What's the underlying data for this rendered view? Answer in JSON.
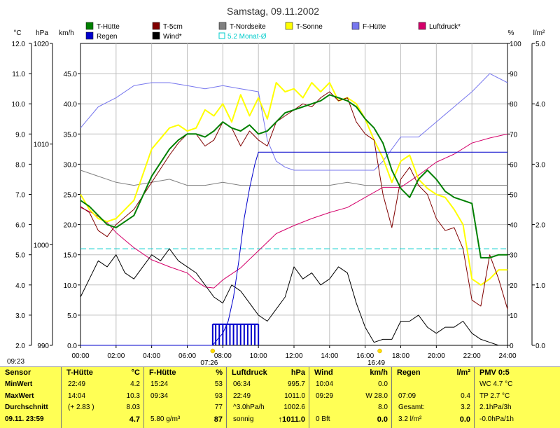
{
  "chart_data": {
    "type": "line",
    "title": "Samstag, 09.11.2002",
    "x_ticks": [
      "00:00",
      "02:00",
      "04:00",
      "06:00",
      "08:00",
      "10:00",
      "12:00",
      "14:00",
      "16:00",
      "18:00",
      "20:00",
      "22:00",
      "24:00"
    ],
    "xlim": [
      0,
      24
    ],
    "axis_units": {
      "temp": "°C",
      "pressure": "hPa",
      "wind": "km/h",
      "humidity": "%",
      "rain": "l/m²"
    },
    "axes": {
      "temp": {
        "lim": [
          2,
          12
        ],
        "ticks": [
          "2.0",
          "3.0",
          "4.0",
          "5.0",
          "6.0",
          "7.0",
          "8.0",
          "9.0",
          "10.0",
          "11.0",
          "12.0"
        ]
      },
      "pressure": {
        "lim": [
          990,
          1020
        ],
        "ticks": [
          "990",
          "1000",
          "1010",
          "1020"
        ]
      },
      "wind": {
        "lim": [
          0,
          50
        ],
        "ticks": [
          "0.0",
          "5.0",
          "10.0",
          "15.0",
          "20.0",
          "25.0",
          "30.0",
          "35.0",
          "40.0",
          "45.0"
        ]
      },
      "humidity": {
        "lim": [
          0,
          100
        ],
        "ticks": [
          "0",
          "10",
          "20",
          "30",
          "40",
          "50",
          "60",
          "70",
          "80",
          "90",
          "100"
        ]
      },
      "rain": {
        "lim": [
          0,
          5
        ],
        "ticks": [
          "0.0",
          "1.0",
          "2.0",
          "3.0",
          "4.0",
          "5.0"
        ]
      }
    },
    "legend": [
      {
        "name": "T-Hütte",
        "color": "#008000",
        "marker": "box"
      },
      {
        "name": "T-5cm",
        "color": "#800000",
        "marker": "box"
      },
      {
        "name": "T-Nordseite",
        "color": "#808080",
        "marker": "box"
      },
      {
        "name": "T-Sonne",
        "color": "#ffff00",
        "marker": "box"
      },
      {
        "name": "F-Hütte",
        "color": "#7777ee",
        "marker": "box"
      },
      {
        "name": "Luftdruck*",
        "color": "#d4006a",
        "marker": "box"
      },
      {
        "name": "Regen",
        "color": "#0000cc",
        "marker": "box"
      },
      {
        "name": "Wind*",
        "color": "#000000",
        "marker": "box"
      },
      {
        "name": "5.2 Monat-Ø",
        "color": "#00cccc",
        "marker": "outline"
      }
    ],
    "monthly_avg_temp": 5.2,
    "markers": [
      {
        "label": "07:26",
        "x": 7.43
      },
      {
        "label": "16:49",
        "x": 16.82
      }
    ],
    "series": [
      {
        "name": "T-Hütte",
        "axis": "temp",
        "color": "#008000",
        "width": 2,
        "x": [
          0,
          0.5,
          1,
          1.5,
          2,
          3,
          4,
          5,
          5.5,
          6,
          6.5,
          7,
          7.5,
          8,
          8.5,
          9,
          9.5,
          10,
          10.5,
          11,
          11.5,
          12,
          12.5,
          13,
          13.5,
          14,
          14.5,
          15,
          15.5,
          16,
          16.5,
          17,
          17.5,
          18,
          18.5,
          19,
          19.5,
          20,
          20.5,
          21,
          21.5,
          22,
          22.5,
          23,
          23.5,
          24
        ],
        "y": [
          6.8,
          6.6,
          6.3,
          6.0,
          5.9,
          6.3,
          7.6,
          8.5,
          8.8,
          9.0,
          9.0,
          8.9,
          9.1,
          9.4,
          9.2,
          9.1,
          9.3,
          9.0,
          9.1,
          9.4,
          9.7,
          9.8,
          9.9,
          10.0,
          10.1,
          10.3,
          10.2,
          10.1,
          9.9,
          9.5,
          9.2,
          8.7,
          7.8,
          7.2,
          6.9,
          7.5,
          7.8,
          7.5,
          7.1,
          6.9,
          6.8,
          6.7,
          4.9,
          4.9,
          5.0,
          5.0
        ]
      },
      {
        "name": "T-5cm",
        "axis": "temp",
        "color": "#800000",
        "width": 1,
        "x": [
          0,
          0.5,
          1,
          1.5,
          2,
          3,
          4,
          5,
          5.5,
          6,
          6.5,
          7,
          7.5,
          8,
          8.5,
          9,
          9.5,
          10,
          10.5,
          11,
          11.5,
          12,
          12.5,
          13,
          13.5,
          14,
          14.5,
          15,
          15.5,
          16,
          16.5,
          17,
          17.5,
          18,
          18.5,
          19,
          19.5,
          20,
          20.5,
          21,
          21.5,
          22,
          22.5,
          23,
          23.5,
          24
        ],
        "y": [
          6.6,
          6.4,
          5.8,
          5.6,
          6.0,
          6.5,
          7.4,
          8.3,
          8.7,
          9.0,
          9.0,
          8.6,
          8.8,
          9.4,
          9.2,
          8.6,
          9.1,
          8.8,
          8.6,
          9.4,
          9.6,
          9.8,
          10.0,
          9.9,
          10.2,
          10.4,
          10.1,
          10.2,
          9.4,
          9.0,
          8.8,
          7.0,
          5.9,
          7.5,
          7.9,
          7.3,
          7.0,
          6.2,
          5.8,
          5.9,
          5.2,
          3.5,
          3.3,
          5.0,
          4.2,
          3.2
        ]
      },
      {
        "name": "T-Nordseite",
        "axis": "temp",
        "color": "#808080",
        "width": 1,
        "x": [
          0,
          1,
          2,
          3,
          4,
          5,
          6,
          7,
          8,
          9,
          10,
          11,
          12,
          13,
          14,
          15,
          16,
          16.5,
          17,
          17.5,
          18,
          19,
          20,
          21,
          22,
          23,
          24
        ],
        "y": [
          7.8,
          7.6,
          7.4,
          7.3,
          7.4,
          7.5,
          7.3,
          7.3,
          7.4,
          7.3,
          7.3,
          7.3,
          7.3,
          7.3,
          7.3,
          7.4,
          7.3,
          7.3,
          7.3,
          7.3,
          7.3,
          7.3,
          7.3,
          7.3,
          7.3,
          7.3,
          7.3
        ]
      },
      {
        "name": "T-Sonne",
        "axis": "temp",
        "color": "#ffff00",
        "width": 2,
        "x": [
          0,
          0.5,
          1,
          1.5,
          2,
          3,
          4,
          5,
          5.5,
          6,
          6.5,
          7,
          7.5,
          8,
          8.5,
          9,
          9.5,
          10,
          10.5,
          11,
          11.5,
          12,
          12.5,
          13,
          13.5,
          14,
          14.5,
          15,
          15.5,
          16,
          16.5,
          17,
          17.5,
          18,
          18.5,
          19,
          19.5,
          20,
          20.5,
          21,
          21.5,
          22,
          22.5,
          23,
          23.5,
          24
        ],
        "y": [
          7.0,
          6.5,
          6.2,
          6.1,
          6.2,
          6.8,
          8.5,
          9.2,
          9.3,
          9.1,
          9.2,
          9.8,
          9.6,
          10.0,
          9.4,
          10.3,
          9.6,
          10.2,
          9.5,
          10.7,
          10.4,
          10.5,
          10.2,
          10.7,
          10.4,
          10.7,
          10.1,
          10.2,
          10.0,
          9.5,
          8.8,
          8.2,
          7.4,
          8.1,
          8.3,
          7.5,
          7.2,
          7.0,
          6.9,
          6.5,
          6.0,
          4.2,
          4.0,
          4.2,
          4.5,
          4.5
        ]
      },
      {
        "name": "F-Hütte",
        "axis": "humidity",
        "color": "#7777ee",
        "width": 1,
        "x": [
          0,
          1,
          2,
          3,
          4,
          5,
          6,
          7,
          8,
          9,
          10,
          10.5,
          11,
          11.5,
          12,
          13,
          14,
          15,
          16,
          16.5,
          17,
          17.5,
          18,
          19,
          20,
          21,
          22,
          23,
          24
        ],
        "y": [
          72,
          79,
          82,
          86,
          87,
          87,
          86,
          85,
          86,
          85,
          84,
          68,
          61,
          59,
          58,
          58,
          58,
          58,
          58,
          58,
          61,
          65,
          69,
          69,
          74,
          79,
          84,
          90,
          87
        ]
      },
      {
        "name": "Luftdruck*",
        "axis": "pressure",
        "color": "#d4006a",
        "width": 1,
        "x": [
          0,
          0.5,
          1,
          1.5,
          2,
          3,
          4,
          5,
          6,
          6.5,
          7,
          7.5,
          8,
          9,
          10,
          11,
          12,
          13,
          14,
          15,
          16,
          17,
          18,
          19,
          20,
          21,
          22,
          23,
          24
        ],
        "y": [
          1003.7,
          1003.3,
          1002.8,
          1002.2,
          1001.2,
          999.7,
          998.5,
          997.8,
          997.2,
          996.4,
          995.8,
          995.7,
          996.5,
          997.7,
          999.4,
          1001.1,
          1001.9,
          1002.6,
          1003.2,
          1003.7,
          1004.7,
          1005.7,
          1005.7,
          1006.9,
          1008.2,
          1009.0,
          1010.1,
          1010.6,
          1011.0
        ]
      },
      {
        "name": "Wind*",
        "axis": "wind",
        "color": "#000000",
        "width": 1,
        "x": [
          0,
          0.5,
          1,
          1.5,
          2,
          2.5,
          3,
          3.5,
          4,
          4.5,
          5,
          5.5,
          6,
          6.5,
          7,
          7.5,
          8,
          8.5,
          9,
          9.5,
          10,
          10.5,
          11,
          11.5,
          12,
          12.5,
          13,
          13.5,
          14,
          14.5,
          15,
          15.5,
          16,
          16.5,
          17,
          17.5,
          18,
          18.5,
          19,
          19.5,
          20,
          20.5,
          21,
          21.5,
          22,
          22.5,
          23,
          23.5,
          24
        ],
        "y": [
          8,
          11,
          14,
          13,
          15,
          12,
          11,
          13,
          15,
          14,
          16,
          14,
          13,
          12,
          10,
          8,
          7,
          10,
          9,
          7,
          5,
          4,
          6,
          8,
          13,
          11,
          12,
          10,
          11,
          13,
          12,
          7,
          3,
          0.5,
          1,
          1,
          4,
          4,
          5,
          3,
          2,
          3,
          3,
          4,
          2,
          1,
          0.5,
          0,
          0
        ]
      },
      {
        "name": "Regen",
        "axis": "rain",
        "color": "#0000cc",
        "width": 1,
        "x": [
          0,
          7.43,
          7.7,
          8,
          8.3,
          8.6,
          8.9,
          9.2,
          9.5,
          9.8,
          10,
          11,
          12,
          13,
          14,
          15,
          16,
          17,
          18,
          19,
          20,
          21,
          22,
          23,
          24
        ],
        "y": [
          0,
          0,
          0.1,
          0.2,
          0.4,
          0.8,
          1.4,
          2.1,
          2.6,
          3.0,
          3.2,
          3.2,
          3.2,
          3.2,
          3.2,
          3.2,
          3.2,
          3.2,
          3.2,
          3.2,
          3.2,
          3.2,
          3.2,
          3.2,
          3.2
        ]
      },
      {
        "name": "Rain bars",
        "axis": "rain",
        "color": "#0000cc",
        "width": 1,
        "kind": "bars",
        "x": [
          7.43,
          7.6,
          7.8,
          8.0,
          8.2,
          8.4,
          8.6,
          8.8,
          9.0,
          9.2,
          9.4,
          9.6,
          9.8,
          10.0
        ],
        "y": [
          0.35,
          0.35,
          0.35,
          0.35,
          0.35,
          0.35,
          0.35,
          0.35,
          0.35,
          0.35,
          0.35,
          0.35,
          0.35,
          0.35
        ]
      }
    ]
  },
  "time_left": "09:23",
  "table": {
    "row_labels": [
      "Sensor",
      "MinWert",
      "MaxWert",
      "Durchschnitt",
      "09.11. 23:59"
    ],
    "t_huette": {
      "title": "T-Hütte",
      "unit": "°C",
      "rows": [
        [
          "22:49",
          "4.2"
        ],
        [
          "14:04",
          "10.3"
        ],
        [
          "(+ 2.83 )",
          "8.03"
        ],
        [
          "",
          "4.7"
        ]
      ]
    },
    "f_huette": {
      "title": "F-Hütte",
      "unit": "%",
      "rows": [
        [
          "15:24",
          "53"
        ],
        [
          "09:34",
          "93"
        ],
        [
          "",
          "77"
        ],
        [
          "5.80 g/m³",
          "87"
        ]
      ]
    },
    "luftdruck": {
      "title": "Luftdruck",
      "unit": "hPa",
      "rows": [
        [
          "06:34",
          "995.7"
        ],
        [
          "22:49",
          "1011.0"
        ],
        [
          "^3.0hPa/h",
          "1002.6"
        ],
        [
          "sonnig",
          "↑1011.0"
        ]
      ]
    },
    "wind": {
      "title": "Wind",
      "unit": "km/h",
      "rows": [
        [
          "10:04",
          "0.0"
        ],
        [
          "09:29",
          "W 28.0"
        ],
        [
          "",
          "8.0"
        ],
        [
          "0 Bft",
          "0.0"
        ]
      ]
    },
    "regen": {
      "title": "Regen",
      "unit": "l/m²",
      "rows": [
        [
          "",
          ""
        ],
        [
          "07:09",
          "0.4"
        ],
        [
          "Gesamt:",
          "3.2"
        ],
        [
          "3.2 l/m²",
          "0.0"
        ]
      ]
    },
    "pmv": {
      "title": "PMV 0:5",
      "rows": [
        "WC 4.7 °C",
        "TP 2.7 °C",
        "2.1hPa/3h",
        "-0.0hPa/1h"
      ]
    }
  }
}
